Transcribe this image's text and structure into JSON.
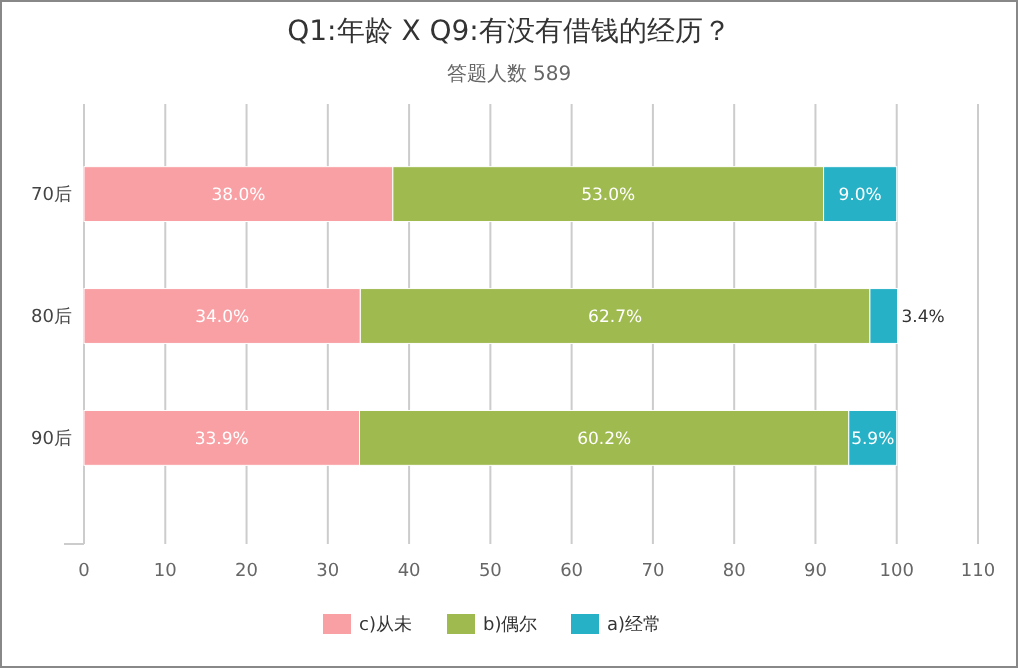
{
  "chart_data": {
    "type": "bar",
    "orientation": "horizontal",
    "stacked": true,
    "title": "Q1:年龄 X Q9:有没有借钱的经历？",
    "subtitle": "答题人数 589",
    "categories": [
      "70后",
      "80后",
      "90后"
    ],
    "series": [
      {
        "name": "c)从未",
        "color": "#f9a0a5",
        "values": [
          38.0,
          34.0,
          33.9
        ],
        "value_labels": [
          "38.0%",
          "34.0%",
          "33.9%"
        ]
      },
      {
        "name": "b)偶尔",
        "color": "#9fba4f",
        "values": [
          53.0,
          62.7,
          60.2
        ],
        "value_labels": [
          "53.0%",
          "62.7%",
          "60.2%"
        ]
      },
      {
        "name": "a)经常",
        "color": "#27b1c6",
        "values": [
          9.0,
          3.4,
          5.9
        ],
        "value_labels": [
          "9.0%",
          "3.4%",
          "5.9%"
        ]
      }
    ],
    "xlim": [
      0,
      110
    ],
    "xticks": [
      0,
      10,
      20,
      30,
      40,
      50,
      60,
      70,
      80,
      90,
      100,
      110
    ],
    "grid": "x",
    "legend": "bottom"
  }
}
